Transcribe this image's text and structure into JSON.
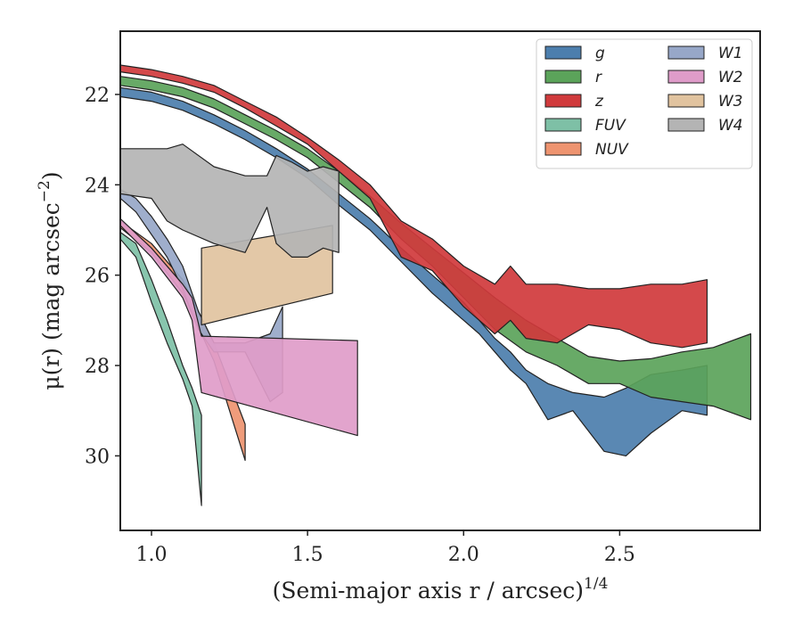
{
  "chart_data": {
    "type": "area",
    "xlabel": "(Semi-major axis r / arcsec)",
    "xlabel_exponent": "1/4",
    "ylabel": "μ(r) (mag arcsec",
    "ylabel_exponent": "−2",
    "ylabel_close": ")",
    "xlim": [
      0.9,
      2.95
    ],
    "ylim": [
      31.65,
      20.6
    ],
    "y_inverted": true,
    "xticks": [
      1.0,
      1.5,
      2.0,
      2.5
    ],
    "xtick_labels": [
      "1.0",
      "1.5",
      "2.0",
      "2.5"
    ],
    "yticks": [
      22,
      24,
      26,
      28,
      30
    ],
    "ytick_labels": [
      "22",
      "24",
      "26",
      "28",
      "30"
    ],
    "grid": false,
    "legend": {
      "position": "top-right",
      "columns": 2
    },
    "series": [
      {
        "name": "g",
        "color": "#4c7ead",
        "x": [
          0.9,
          1.0,
          1.1,
          1.2,
          1.3,
          1.4,
          1.5,
          1.6,
          1.7,
          1.8,
          1.9,
          2.0,
          2.05,
          2.1,
          2.15,
          2.2,
          2.27,
          2.35,
          2.45,
          2.52,
          2.6,
          2.7,
          2.78
        ],
        "lower": [
          21.85,
          21.95,
          22.15,
          22.45,
          22.8,
          23.2,
          23.65,
          24.2,
          24.75,
          25.4,
          26.0,
          26.6,
          27.0,
          27.4,
          27.7,
          28.1,
          28.4,
          28.6,
          28.7,
          28.5,
          28.2,
          28.1,
          28.0
        ],
        "upper": [
          22.05,
          22.15,
          22.35,
          22.65,
          23.0,
          23.4,
          23.85,
          24.45,
          25.0,
          25.7,
          26.4,
          27.0,
          27.3,
          27.7,
          28.1,
          28.4,
          29.2,
          29.0,
          29.9,
          30.0,
          29.5,
          29.0,
          29.1
        ]
      },
      {
        "name": "r",
        "color": "#5ba35a",
        "x": [
          0.9,
          1.0,
          1.1,
          1.2,
          1.3,
          1.4,
          1.5,
          1.6,
          1.7,
          1.8,
          1.9,
          2.0,
          2.1,
          2.2,
          2.3,
          2.4,
          2.5,
          2.6,
          2.7,
          2.8,
          2.92
        ],
        "lower": [
          21.6,
          21.7,
          21.85,
          22.1,
          22.45,
          22.8,
          23.2,
          23.7,
          24.25,
          24.85,
          25.4,
          25.95,
          26.5,
          27.0,
          27.4,
          27.8,
          27.9,
          27.85,
          27.7,
          27.6,
          27.3
        ],
        "upper": [
          21.8,
          21.9,
          22.05,
          22.3,
          22.65,
          23.0,
          23.4,
          23.95,
          24.5,
          25.2,
          25.8,
          26.5,
          27.2,
          27.7,
          28.0,
          28.4,
          28.4,
          28.7,
          28.8,
          28.9,
          29.2
        ]
      },
      {
        "name": "z",
        "color": "#d03a3c",
        "x": [
          0.9,
          1.0,
          1.1,
          1.2,
          1.3,
          1.4,
          1.5,
          1.6,
          1.7,
          1.8,
          1.9,
          2.0,
          2.1,
          2.15,
          2.2,
          2.3,
          2.4,
          2.5,
          2.6,
          2.7,
          2.78
        ],
        "lower": [
          21.35,
          21.45,
          21.6,
          21.8,
          22.15,
          22.5,
          22.95,
          23.45,
          24.0,
          24.8,
          25.2,
          25.8,
          26.2,
          25.8,
          26.2,
          26.2,
          26.3,
          26.3,
          26.2,
          26.2,
          26.1
        ],
        "upper": [
          21.5,
          21.6,
          21.75,
          21.95,
          22.3,
          22.7,
          23.1,
          23.7,
          24.3,
          25.6,
          25.9,
          26.7,
          27.3,
          27.0,
          27.4,
          27.5,
          27.1,
          27.2,
          27.5,
          27.6,
          27.5
        ]
      },
      {
        "name": "FUV",
        "color": "#7ec0a6",
        "x": [
          0.9,
          0.95,
          1.0,
          1.05,
          1.1,
          1.13,
          1.16
        ],
        "lower": [
          25.05,
          25.3,
          26.1,
          27.0,
          28.0,
          28.5,
          29.1
        ],
        "upper": [
          25.2,
          25.6,
          26.6,
          27.5,
          28.3,
          28.9,
          31.1
        ]
      },
      {
        "name": "NUV",
        "color": "#ee9470",
        "x": [
          0.9,
          1.0,
          1.1,
          1.2,
          1.3
        ],
        "lower": [
          24.8,
          25.3,
          26.1,
          27.5,
          29.3
        ],
        "upper": [
          24.95,
          25.5,
          26.4,
          27.9,
          30.1
        ]
      },
      {
        "name": "W1",
        "color": "#97a7c8",
        "x": [
          0.9,
          0.95,
          1.0,
          1.05,
          1.1,
          1.15,
          1.2,
          1.3,
          1.38,
          1.42
        ],
        "lower": [
          24.1,
          24.3,
          24.7,
          25.2,
          25.8,
          26.8,
          27.5,
          27.5,
          27.3,
          26.7
        ],
        "upper": [
          24.3,
          24.6,
          25.1,
          25.6,
          26.3,
          27.2,
          27.7,
          27.7,
          28.8,
          28.6
        ]
      },
      {
        "name": "W2",
        "color": "#df9cc9",
        "x": [
          0.9,
          1.0,
          1.1,
          1.13,
          1.16,
          1.66
        ],
        "lower": [
          24.75,
          25.4,
          26.2,
          26.5,
          27.35,
          27.45
        ],
        "upper": [
          24.9,
          25.6,
          26.5,
          27.0,
          28.6,
          29.55
        ]
      },
      {
        "name": "W3",
        "color": "#e1c39f",
        "x": [
          1.16,
          1.58
        ],
        "lower": [
          25.4,
          24.9
        ],
        "upper": [
          27.1,
          26.4
        ]
      },
      {
        "name": "W4",
        "color": "#b4b4b4",
        "x": [
          0.9,
          0.95,
          1.0,
          1.05,
          1.1,
          1.2,
          1.3,
          1.37,
          1.4,
          1.45,
          1.5,
          1.55,
          1.6
        ],
        "lower": [
          23.2,
          23.2,
          23.2,
          23.2,
          23.1,
          23.6,
          23.8,
          23.8,
          23.35,
          23.5,
          23.7,
          23.6,
          23.7
        ],
        "upper": [
          24.2,
          24.25,
          24.3,
          24.8,
          25.0,
          25.3,
          25.5,
          24.5,
          25.3,
          25.6,
          25.6,
          25.4,
          25.5
        ]
      }
    ]
  }
}
